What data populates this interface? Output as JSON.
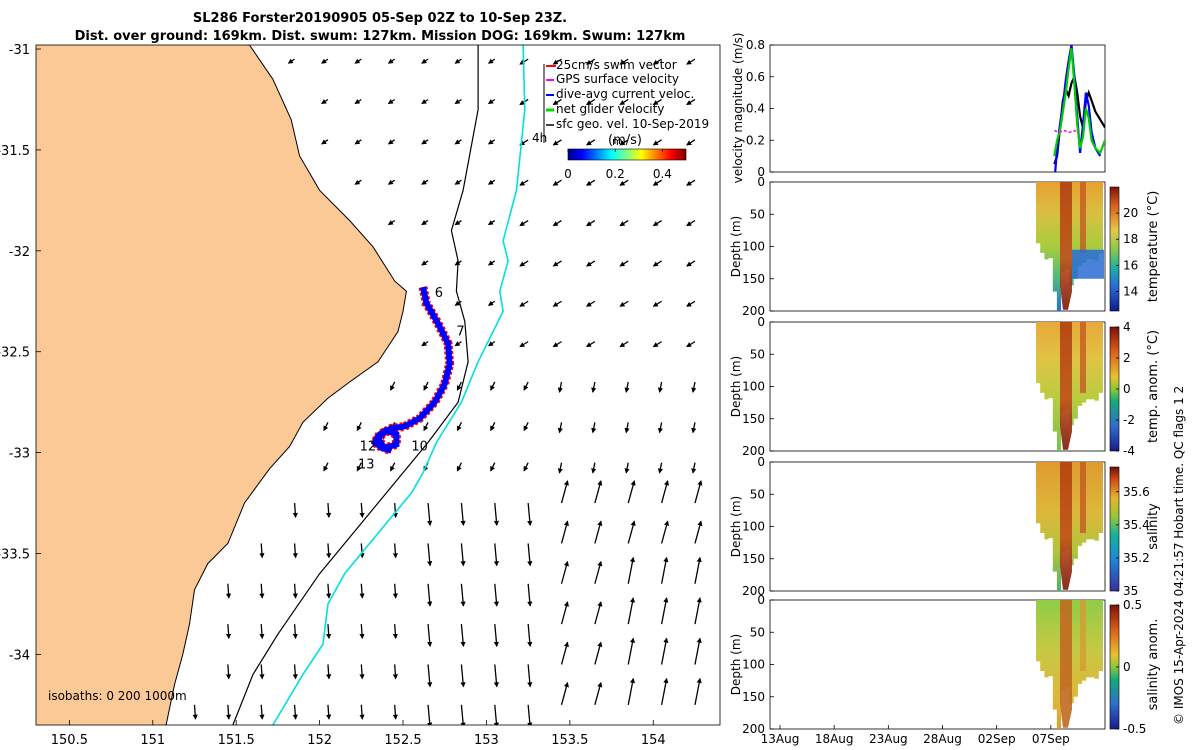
{
  "title_line1": "SL286 Forster20190905 05-Sep 02Z to 10-Sep 23Z.",
  "title_line2": "Dist. over ground: 169km. Dist. swum: 127km. Mission DOG: 169km. Swum: 127km",
  "credit": "© IMOS 15-Apr-2024 04:21:57 Hobart time. QC flags 1  2",
  "colors": {
    "land": "#fbc996",
    "track": "#0000ff",
    "swim_vector": "#ff0000",
    "gps_velocity": "#ff00ff",
    "net_velocity": "#00dd00",
    "isobath_200": "#000000",
    "isobath_1000": "#00e0e0",
    "vel_dive_avg": "#0000ff",
    "vel_net": "#00cc00",
    "vel_gps": "#ff00ff",
    "vel_sfc": "#000000"
  },
  "chart_data": [
    {
      "type": "scatter",
      "subtype": "map",
      "xlim": [
        150.3,
        154.4
      ],
      "ylim": [
        -34.35,
        -30.98
      ],
      "xticks": [
        150.5,
        151,
        151.5,
        152,
        152.5,
        153,
        153.5,
        154
      ],
      "yticks": [
        -31,
        -31.5,
        -32,
        -32.5,
        -33,
        -33.5,
        -34
      ],
      "xtick_labels": [
        "150.5",
        "151",
        "151.5",
        "152",
        "152.5",
        "153",
        "153.5",
        "154"
      ],
      "ytick_labels": [
        "-31",
        "-31.5",
        "-32",
        "-32.5",
        "-33",
        "-33.5",
        "-34"
      ],
      "legend": {
        "position": "top-right",
        "entries": [
          "25cm/s swim vector",
          "GPS surface velocity",
          "dive-avg current veloc.",
          "net glider velocity",
          "sfc geo. vel. 10-Sep-2019"
        ],
        "tick_label": "4h"
      },
      "colorbar": {
        "label": "(m/s)",
        "range": [
          0,
          0.5
        ],
        "ticks": [
          0,
          0.2,
          0.4
        ],
        "tick_labels": [
          "0",
          "0.2",
          "0.4"
        ],
        "label_extra": "m"
      },
      "isobath_caption": "isobaths: 0   200  1000m",
      "day_labels": [
        {
          "text": "6",
          "lon": 152.69,
          "lat": -32.23
        },
        {
          "text": "7",
          "lon": 152.82,
          "lat": -32.42
        },
        {
          "text": "10",
          "lon": 152.55,
          "lat": -32.99
        },
        {
          "text": "12",
          "lon": 152.24,
          "lat": -32.99
        },
        {
          "text": "13",
          "lon": 152.23,
          "lat": -33.08
        }
      ],
      "track": [
        [
          152.62,
          -32.18
        ],
        [
          152.64,
          -32.26
        ],
        [
          152.71,
          -32.36
        ],
        [
          152.77,
          -32.46
        ],
        [
          152.78,
          -32.56
        ],
        [
          152.75,
          -32.66
        ],
        [
          152.69,
          -32.75
        ],
        [
          152.6,
          -32.83
        ],
        [
          152.51,
          -32.87
        ],
        [
          152.43,
          -32.88
        ],
        [
          152.36,
          -32.91
        ],
        [
          152.33,
          -32.95
        ],
        [
          152.38,
          -32.98
        ],
        [
          152.46,
          -32.96
        ],
        [
          152.46,
          -32.91
        ],
        [
          152.4,
          -32.89
        ],
        [
          152.35,
          -32.93
        ],
        [
          152.39,
          -32.98
        ],
        [
          152.43,
          -32.99
        ]
      ],
      "coast": [
        [
          151.58,
          -30.98
        ],
        [
          151.72,
          -31.15
        ],
        [
          151.83,
          -31.35
        ],
        [
          151.88,
          -31.53
        ],
        [
          152.0,
          -31.7
        ],
        [
          152.18,
          -31.85
        ],
        [
          152.32,
          -31.98
        ],
        [
          152.45,
          -32.15
        ],
        [
          152.52,
          -32.2
        ],
        [
          152.5,
          -32.3
        ],
        [
          152.47,
          -32.4
        ],
        [
          152.35,
          -32.55
        ],
        [
          152.18,
          -32.65
        ],
        [
          152.05,
          -32.73
        ],
        [
          151.9,
          -32.85
        ],
        [
          151.82,
          -32.97
        ],
        [
          151.7,
          -33.08
        ],
        [
          151.55,
          -33.25
        ],
        [
          151.45,
          -33.45
        ],
        [
          151.33,
          -33.55
        ],
        [
          151.25,
          -33.68
        ],
        [
          151.22,
          -33.85
        ],
        [
          151.18,
          -34.0
        ],
        [
          151.13,
          -34.15
        ],
        [
          151.08,
          -34.35
        ]
      ],
      "isobath_200": [
        [
          152.95,
          -30.98
        ],
        [
          152.95,
          -31.3
        ],
        [
          152.86,
          -31.7
        ],
        [
          152.79,
          -31.9
        ],
        [
          152.83,
          -32.05
        ],
        [
          152.82,
          -32.2
        ],
        [
          152.87,
          -32.35
        ],
        [
          152.89,
          -32.55
        ],
        [
          152.83,
          -32.75
        ],
        [
          152.65,
          -32.95
        ],
        [
          152.5,
          -33.1
        ],
        [
          152.3,
          -33.3
        ],
        [
          152.0,
          -33.6
        ],
        [
          151.75,
          -33.9
        ],
        [
          151.6,
          -34.1
        ],
        [
          151.48,
          -34.35
        ]
      ],
      "isobath_1000": [
        [
          153.22,
          -30.98
        ],
        [
          153.23,
          -31.3
        ],
        [
          153.18,
          -31.7
        ],
        [
          153.1,
          -31.95
        ],
        [
          153.13,
          -32.05
        ],
        [
          153.08,
          -32.2
        ],
        [
          153.1,
          -32.3
        ],
        [
          152.95,
          -32.55
        ],
        [
          152.85,
          -32.75
        ],
        [
          152.7,
          -32.95
        ],
        [
          152.62,
          -33.1
        ],
        [
          152.55,
          -33.2
        ],
        [
          152.35,
          -33.4
        ],
        [
          152.15,
          -33.6
        ],
        [
          152.05,
          -33.75
        ],
        [
          152.02,
          -33.95
        ],
        [
          151.9,
          -34.1
        ],
        [
          151.72,
          -34.35
        ]
      ]
    },
    {
      "type": "line",
      "ylabel": "velocity magnitude (m/s)",
      "ylim": [
        0,
        0.8
      ],
      "yticks": [
        0,
        0.2,
        0.4,
        0.6,
        0.8
      ],
      "ytick_labels": [
        "0",
        "0.2",
        "0.4",
        "0.6",
        "0.8"
      ],
      "xlim": [
        0,
        35
      ],
      "series": [
        {
          "role": "vel_sfc",
          "x": [
            29.7,
            30.0,
            30.3,
            30.6,
            30.9,
            31.2,
            31.5,
            31.8,
            32.1,
            32.4,
            32.7,
            33.0,
            33.3,
            33.6,
            34.0,
            34.5,
            35.0
          ],
          "y": [
            0.05,
            0.1,
            0.28,
            0.45,
            0.52,
            0.48,
            0.56,
            0.6,
            0.5,
            0.35,
            0.28,
            0.45,
            0.5,
            0.45,
            0.38,
            0.33,
            0.28
          ]
        },
        {
          "role": "vel_dive_avg",
          "x": [
            29.8,
            30.0,
            30.3,
            30.6,
            30.9,
            31.2,
            31.5,
            31.8,
            32.1,
            32.4,
            32.7,
            33.0,
            33.3,
            33.6,
            34.0,
            34.5
          ],
          "y": [
            0.0,
            0.15,
            0.3,
            0.42,
            0.58,
            0.7,
            0.8,
            0.6,
            0.35,
            0.12,
            0.3,
            0.5,
            0.42,
            0.25,
            0.15,
            0.1
          ]
        },
        {
          "role": "vel_net",
          "x": [
            29.7,
            30.0,
            30.3,
            30.6,
            30.9,
            31.2,
            31.5,
            31.8,
            32.1,
            32.4,
            32.7,
            33.0,
            33.3,
            33.6,
            34.0,
            34.5,
            35.0
          ],
          "y": [
            0.1,
            0.2,
            0.26,
            0.38,
            0.5,
            0.65,
            0.78,
            0.55,
            0.3,
            0.15,
            0.22,
            0.4,
            0.34,
            0.2,
            0.15,
            0.12,
            0.2
          ]
        },
        {
          "role": "vel_gps",
          "x": [
            29.7,
            30.2,
            30.8,
            31.3,
            31.8,
            32.3
          ],
          "y": [
            0.26,
            0.25,
            0.26,
            0.25,
            0.26,
            0.25
          ]
        }
      ]
    },
    {
      "type": "heatmap",
      "ylabel": "Depth (m)",
      "ylim": [
        200,
        0
      ],
      "yticks": [
        0,
        50,
        100,
        150,
        200
      ],
      "ytick_labels": [
        "0",
        "50",
        "100",
        "150",
        "200"
      ],
      "colorbar": {
        "label": "temperature (°C)",
        "range": [
          12.5,
          22
        ],
        "ticks": [
          14,
          16,
          18,
          20
        ],
        "tick_labels": [
          "14",
          "16",
          "18",
          "20"
        ]
      }
    },
    {
      "type": "heatmap",
      "ylabel": "Depth (m)",
      "ylim": [
        200,
        0
      ],
      "yticks": [
        0,
        50,
        100,
        150,
        200
      ],
      "ytick_labels": [
        "0",
        "50",
        "100",
        "150",
        "200"
      ],
      "colorbar": {
        "label": "temp. anom. (°C)",
        "range": [
          -4,
          4
        ],
        "ticks": [
          -4,
          -2,
          0,
          2,
          4
        ],
        "tick_labels": [
          "-4",
          "-2",
          "0",
          "2",
          "4"
        ]
      }
    },
    {
      "type": "heatmap",
      "ylabel": "Depth (m)",
      "ylim": [
        200,
        0
      ],
      "yticks": [
        0,
        50,
        100,
        150,
        200
      ],
      "ytick_labels": [
        "0",
        "50",
        "100",
        "150",
        "200"
      ],
      "colorbar": {
        "label": "salinity",
        "range": [
          35,
          35.75
        ],
        "ticks": [
          35,
          35.2,
          35.4,
          35.6
        ],
        "tick_labels": [
          "35",
          "35.2",
          "35.4",
          "35.6"
        ]
      }
    },
    {
      "type": "heatmap",
      "ylabel": "Depth (m)",
      "ylim": [
        200,
        0
      ],
      "yticks": [
        0,
        50,
        100,
        150,
        200
      ],
      "ytick_labels": [
        "0",
        "50",
        "100",
        "150",
        "200"
      ],
      "xticks": [
        0,
        5,
        10,
        15,
        20,
        25
      ],
      "xtick_labels": [
        "13Aug",
        "18Aug",
        "23Aug",
        "28Aug",
        "02Sep",
        "07Sep"
      ],
      "colorbar": {
        "label": "salinity anom.",
        "range": [
          -0.5,
          0.5
        ],
        "ticks": [
          -0.5,
          0,
          0.5
        ],
        "tick_labels": [
          "-0.5",
          "0",
          "0.5"
        ]
      }
    }
  ]
}
